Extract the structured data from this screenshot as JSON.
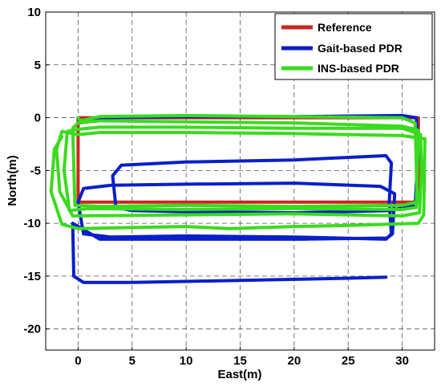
{
  "chart_data": {
    "type": "line",
    "title": "",
    "xlabel": "East(m)",
    "ylabel": "North(m)",
    "xlim": [
      -3,
      33
    ],
    "ylim": [
      -22,
      10
    ],
    "xticks": [
      0,
      5,
      10,
      15,
      20,
      25,
      30
    ],
    "yticks": [
      10,
      5,
      0,
      -5,
      -10,
      -15,
      -20
    ],
    "xtick_labels": [
      "0",
      "5",
      "10",
      "15",
      "20",
      "25",
      "30"
    ],
    "ytick_labels": [
      "10",
      "5",
      "0",
      "-5",
      "-10",
      "-15",
      "-20"
    ],
    "grid": true,
    "grid_style": "dashed",
    "legend_position": "top-right",
    "series": [
      {
        "name": "Reference",
        "color": "#c8281e",
        "x": [
          0,
          0,
          31.5,
          31.5,
          0
        ],
        "y": [
          0,
          -8,
          -8,
          0,
          0
        ]
      },
      {
        "name": "Gait-based PDR",
        "color": "#0a1fc8",
        "x": [
          0,
          0.2,
          2,
          10,
          20,
          30,
          31.3,
          31.5,
          31.2,
          29,
          20,
          10,
          5,
          3.5,
          3.2,
          4,
          10,
          20,
          28.5,
          29,
          28.8,
          29,
          28.5,
          20,
          10,
          3,
          0.5,
          0,
          0.5,
          3,
          10,
          20,
          28,
          29.3,
          29.1,
          28.6,
          20,
          10,
          2,
          -0.5,
          -0.4,
          0.5,
          5,
          10,
          15,
          20,
          25,
          28.5
        ],
        "y": [
          0,
          -0.5,
          0,
          0.1,
          0.1,
          0.2,
          0,
          -3,
          -8.2,
          -8.8,
          -9,
          -8.9,
          -8.8,
          -8.5,
          -5.5,
          -4.5,
          -4.2,
          -4,
          -3.6,
          -4.3,
          -8,
          -11,
          -11.5,
          -11.3,
          -11.2,
          -11.3,
          -11,
          -8,
          -6.7,
          -6.4,
          -6.3,
          -6.2,
          -6.5,
          -7.2,
          -11,
          -11.4,
          -11.5,
          -11.5,
          -11.5,
          -10,
          -15,
          -15.6,
          -15.6,
          -15.5,
          -15.4,
          -15.3,
          -15.2,
          -15.1
        ]
      },
      {
        "name": "INS-based PDR",
        "color": "#3adb1e",
        "x": [
          0,
          0.2,
          2,
          10,
          20,
          30,
          31.2,
          31.4,
          30,
          20,
          10,
          2,
          -0.3,
          -0.5,
          0,
          2,
          10,
          20,
          30,
          31.5,
          31.3,
          30,
          20,
          10,
          1,
          -0.8,
          -1.3,
          -1,
          0,
          2,
          10,
          20,
          30,
          31.7,
          31.8,
          31.6,
          30,
          20,
          10,
          -0.5,
          -1.7,
          -2,
          -1.5,
          0,
          2,
          10,
          20,
          30,
          32.1,
          32,
          31.5,
          25,
          20,
          14,
          10,
          5,
          0,
          -1.5,
          -2.5,
          -2.2,
          -1.5
        ],
        "y": [
          0,
          -0.3,
          0.1,
          0.2,
          0.1,
          0,
          -0.5,
          -8,
          -8.3,
          -8.4,
          -8.3,
          -8.4,
          -8.3,
          -1,
          -0.5,
          -0.3,
          -0.4,
          -0.5,
          -0.8,
          -1.2,
          -8.5,
          -8.7,
          -8.6,
          -8.7,
          -8.6,
          -8.8,
          -5,
          -1.3,
          -1.1,
          -0.9,
          -0.9,
          -1,
          -1,
          -1.6,
          -5,
          -9,
          -9.3,
          -9.1,
          -9.2,
          -9.3,
          -7,
          -3,
          -1.3,
          -1.6,
          -1.4,
          -1.4,
          -1.5,
          -1.7,
          -2,
          -9.2,
          -10,
          -10.2,
          -10.3,
          -10.5,
          -10.3,
          -10.4,
          -10.5,
          -10.1,
          -7,
          -3,
          -1.8
        ]
      }
    ]
  }
}
